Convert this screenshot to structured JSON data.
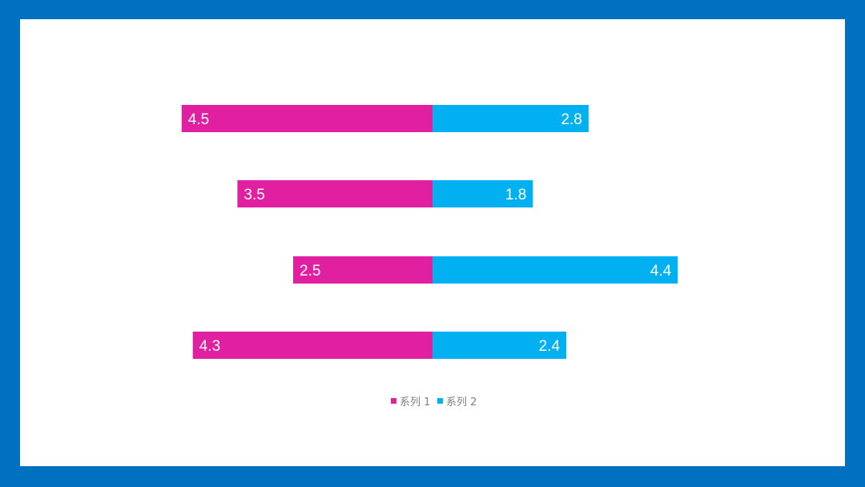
{
  "chart_data": {
    "type": "bar",
    "orientation": "horizontal",
    "layout": "diverging",
    "categories": [
      "",
      "",
      "",
      ""
    ],
    "series": [
      {
        "name": "系列 1",
        "values": [
          4.5,
          3.5,
          2.5,
          4.3
        ],
        "color": "#e020a0",
        "direction": "left"
      },
      {
        "name": "系列 2",
        "values": [
          2.8,
          1.8,
          4.4,
          2.4
        ],
        "color": "#00b0f0",
        "direction": "right"
      }
    ],
    "title": "",
    "xlabel": "",
    "ylabel": "",
    "grid": false,
    "axes_visible": false,
    "data_labels": true,
    "legend": "bottom"
  },
  "colors": {
    "frame": "#0070c0",
    "background": "#ffffff",
    "legend_text": "#7f7f7f"
  }
}
